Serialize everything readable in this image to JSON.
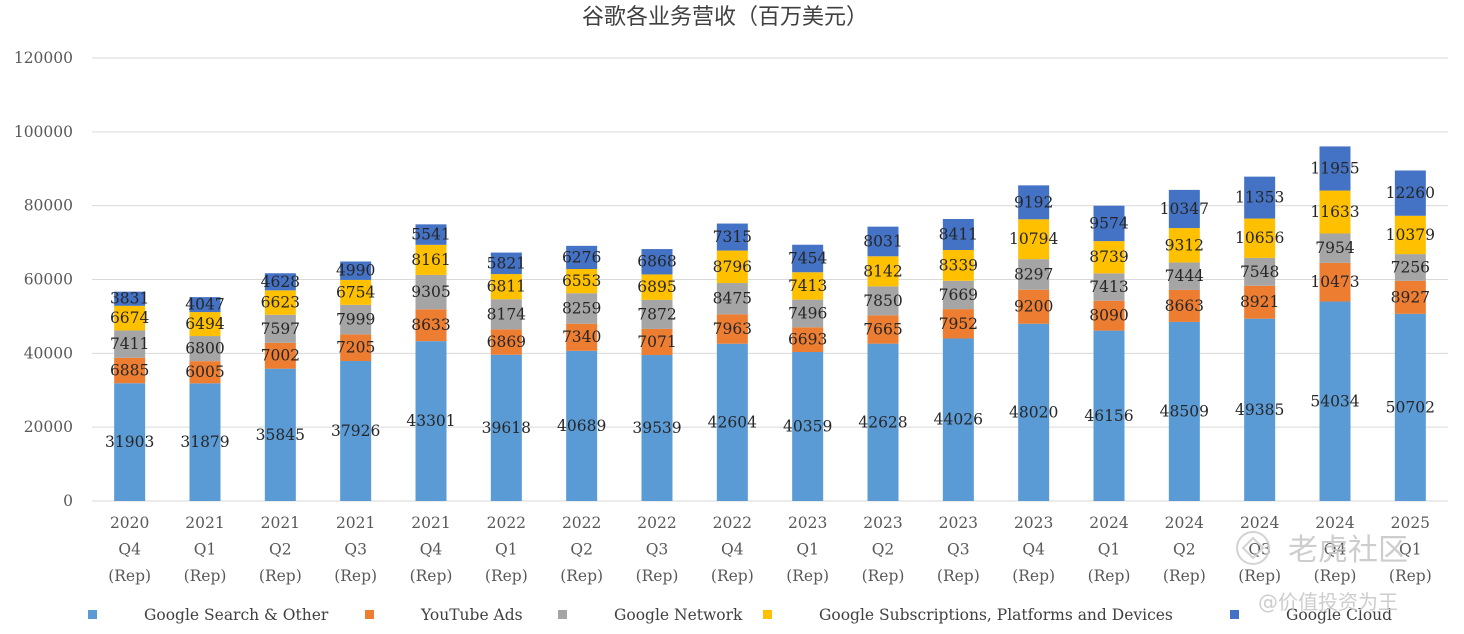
{
  "chart_data": {
    "type": "bar",
    "stacked": true,
    "title": "谷歌各业务营收（百万美元）",
    "xlabel": "",
    "ylabel": "",
    "ylim": [
      0,
      120000
    ],
    "yticks": [
      "0",
      "20000",
      "40000",
      "60000",
      "80000",
      "100000",
      "120000"
    ],
    "grid": true,
    "legend_position": "bottom",
    "categories": [
      [
        "2020",
        "Q4",
        "(Rep)"
      ],
      [
        "2021",
        "Q1",
        "(Rep)"
      ],
      [
        "2021",
        "Q2",
        "(Rep)"
      ],
      [
        "2021",
        "Q3",
        "(Rep)"
      ],
      [
        "2021",
        "Q4",
        "(Rep)"
      ],
      [
        "2022",
        "Q1",
        "(Rep)"
      ],
      [
        "2022",
        "Q2",
        "(Rep)"
      ],
      [
        "2022",
        "Q3",
        "(Rep)"
      ],
      [
        "2022",
        "Q4",
        "(Rep)"
      ],
      [
        "2023",
        "Q1",
        "(Rep)"
      ],
      [
        "2023",
        "Q2",
        "(Rep)"
      ],
      [
        "2023",
        "Q3",
        "(Rep)"
      ],
      [
        "2023",
        "Q4",
        "(Rep)"
      ],
      [
        "2024",
        "Q1",
        "(Rep)"
      ],
      [
        "2024",
        "Q2",
        "(Rep)"
      ],
      [
        "2024",
        "Q3",
        "(Rep)"
      ],
      [
        "2024",
        "Q4",
        "(Rep)"
      ],
      [
        "2025",
        "Q1",
        "(Rep)"
      ]
    ],
    "series": [
      {
        "name": "Google Search & Other",
        "color": "#5b9bd5",
        "values": [
          31903,
          31879,
          35845,
          37926,
          43301,
          39618,
          40689,
          39539,
          42604,
          40359,
          42628,
          44026,
          48020,
          46156,
          48509,
          49385,
          54034,
          50702
        ]
      },
      {
        "name": "YouTube Ads",
        "color": "#ed7d31",
        "values": [
          6885,
          6005,
          7002,
          7205,
          8633,
          6869,
          7340,
          7071,
          7963,
          6693,
          7665,
          7952,
          9200,
          8090,
          8663,
          8921,
          10473,
          8927
        ]
      },
      {
        "name": "Google Network",
        "color": "#a5a5a5",
        "values": [
          7411,
          6800,
          7597,
          7999,
          9305,
          8174,
          8259,
          7872,
          8475,
          7496,
          7850,
          7669,
          8297,
          7413,
          7444,
          7548,
          7954,
          7256
        ]
      },
      {
        "name": "Google Subscriptions, Platforms and Devices",
        "color": "#ffc000",
        "values": [
          6674,
          6494,
          6623,
          6754,
          8161,
          6811,
          6553,
          6895,
          8796,
          7413,
          8142,
          8339,
          10794,
          8739,
          9312,
          10656,
          11633,
          10379
        ]
      },
      {
        "name": "Google Cloud",
        "color": "#4472c4",
        "values": [
          3831,
          4047,
          4628,
          4990,
          5541,
          5821,
          6276,
          6868,
          7315,
          7454,
          8031,
          8411,
          9192,
          9574,
          10347,
          11353,
          11955,
          12260
        ]
      }
    ]
  },
  "watermark": {
    "brand": "老虎社区",
    "author": "@价值投资为王"
  }
}
